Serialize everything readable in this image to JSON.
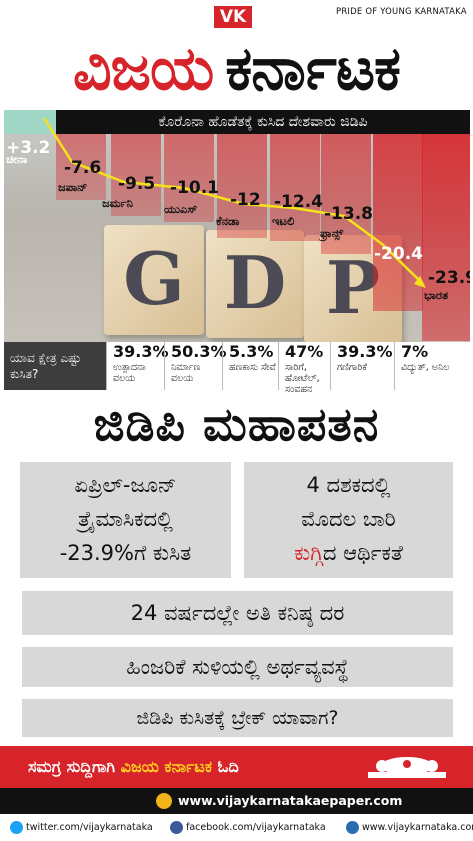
{
  "header": {
    "badge": "VK",
    "tagline": "PRIDE OF YOUNG KARNATAKA",
    "masthead_part1": "ವಿಜಯ",
    "masthead_part2": "ಕರ್ನಾಟಕ",
    "brand_red": "#d7242a"
  },
  "chart": {
    "title": "ಕೊರೊನಾ ಹೊಡೆತಕ್ಕೆ ಕುಸಿದ ದೇಶವಾರು ಜಿಡಿಪಿ",
    "background_word": "GDP",
    "colors": {
      "positive": "#9fd6c5",
      "negative": "#d7242a",
      "trend": "#f5e21a"
    }
  },
  "chart_data": {
    "type": "bar",
    "title": "ಕೊರೊನಾ ಹೊಡೆತಕ್ಕೆ ಕುಸಿದ ದೇಶವಾರು ಜಿಡಿಪಿ",
    "categories": [
      "ಚೀನಾ",
      "ಜಪಾನ್",
      "ಜರ್ಮನಿ",
      "ಯುಎಸ್",
      "ಕೆನಡಾ",
      "ಇಟಲಿ",
      "ಫ್ರಾನ್ಸ್",
      "ಭಾರತ"
    ],
    "values": [
      3.2,
      -7.6,
      -9.5,
      -10.1,
      -12,
      -12.4,
      -13.8,
      -23.9
    ],
    "value_labels": [
      "+3.2",
      "-7.6",
      "-9.5",
      "-10.1",
      "-12",
      "-12.4",
      "-13.8",
      "-23.9"
    ],
    "extra_value_label": "-20.4",
    "xlabel": "",
    "ylabel": ""
  },
  "sectors": {
    "question": "ಯಾವ ಕ್ಷೇತ್ರ ಎಷ್ಟು ಕುಸಿತ?",
    "items": [
      {
        "pct": "39.3%",
        "name": "ಉತ್ಪಾದನಾ ವಲಯ"
      },
      {
        "pct": "50.3%",
        "name": "ನಿರ್ಮಾಣ ವಲಯ"
      },
      {
        "pct": "5.3%",
        "name": "ಹಣಕಾಸು ಸೇವೆ"
      },
      {
        "pct": "47%",
        "name": "ಸಾರಿಗೆ, ಹೋಟೆಲ್, ಸಂವಹನ"
      },
      {
        "pct": "39.3%",
        "name": "ಗಣಿಗಾರಿಕೆ"
      },
      {
        "pct": "7%",
        "name": "ವಿದ್ಯುತ್, ಅನಿಲ"
      }
    ]
  },
  "headline": "ಜಿಡಿಪಿ ಮಹಾಪತನ",
  "boxes": {
    "box1_line1": "ಏಪ್ರಿಲ್-ಜೂನ್",
    "box1_line2": "ತ್ರೈಮಾಸಿಕದಲ್ಲಿ",
    "box1_line3": "-23.9%ಗೆ ಕುಸಿತ",
    "box2_line1": "4 ದಶಕದಲ್ಲಿ",
    "box2_line2": "ಮೊದಲ ಬಾರಿ",
    "box2_red": "ಕುಗ್ಗಿ",
    "box2_rest": "ದ ಆರ್ಥಿಕತೆ",
    "box3": "24 ವರ್ಷದಲ್ಲೇ ಅತಿ ಕನಿಷ್ಠ ದರ",
    "box4": "ಹಿಂಜರಿಕೆ ಸುಳಿಯಲ್ಲಿ ಅರ್ಥವ್ಯವಸ್ಥೆ",
    "box5": "ಜಿಡಿಪಿ ಕುಸಿತಕ್ಕೆ ಬ್ರೇಕ್ ಯಾವಾಗ?"
  },
  "footer": {
    "text_before": "ಸಮಗ್ರ ಸುದ್ದಿಗಾಗಿ ",
    "text_brand": "ವಿಜಯ ಕರ್ನಾಟಕ",
    "text_after": " ಓದಿ",
    "epaper": "www.vijaykarnatakaepaper.com",
    "twitter": "twitter.com/vijaykarnataka",
    "facebook": "facebook.com/vijaykarnataka",
    "website": "www.vijaykarnataka.com"
  }
}
